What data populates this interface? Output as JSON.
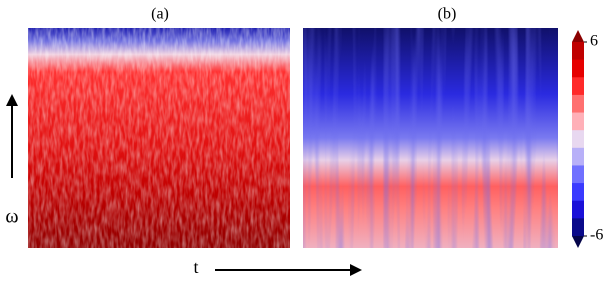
{
  "panels": [
    {
      "label": "(a)"
    },
    {
      "label": "(b)"
    }
  ],
  "axes": {
    "y_label": "ω",
    "x_label": "t"
  },
  "colorbar": {
    "lim": [
      -6,
      6
    ],
    "ticks": [
      6,
      -6
    ],
    "colors": [
      "#8b0000",
      "#c00000",
      "#e60000",
      "#ff2a2a",
      "#ff7070",
      "#ffb0b8",
      "#e8d8f0",
      "#b8b0f8",
      "#7070ff",
      "#3a3aff",
      "#1a10d8",
      "#0a0a8a",
      "#05054a"
    ]
  }
}
